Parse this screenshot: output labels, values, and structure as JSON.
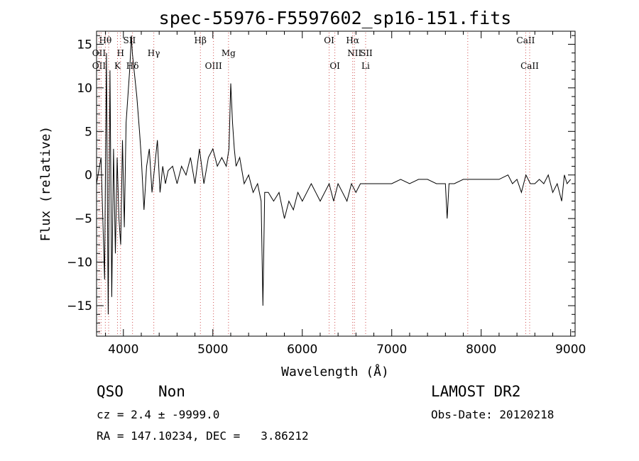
{
  "chart_data": {
    "type": "line",
    "title": "spec-55976-F5597602_sp16-151.fits",
    "xlabel": "Wavelength (Å)",
    "ylabel": "Flux (relative)",
    "xlim": [
      3700,
      9050
    ],
    "ylim": [
      -18.5,
      16.5
    ],
    "xticks": [
      4000,
      5000,
      6000,
      7000,
      8000,
      9000
    ],
    "yticks": [
      -15,
      -10,
      -5,
      0,
      5,
      10,
      15
    ],
    "ytick_labels": [
      "−15",
      "−10",
      "−5",
      "0",
      "5",
      "10",
      "15"
    ],
    "grid": false,
    "series": [
      {
        "x": [
          3700,
          3750,
          3790,
          3810,
          3830,
          3850,
          3870,
          3890,
          3910,
          3930,
          3950,
          3970,
          3990,
          4010,
          4030,
          4050,
          4070,
          4090,
          4100,
          4120,
          4150,
          4180,
          4200,
          4230,
          4260,
          4290,
          4320,
          4350,
          4380,
          4410,
          4440,
          4470,
          4500,
          4550,
          4600,
          4650,
          4700,
          4750,
          4800,
          4850,
          4900,
          4950,
          5000,
          5050,
          5100,
          5150,
          5180,
          5200,
          5220,
          5240,
          5260,
          5300,
          5350,
          5400,
          5450,
          5500,
          5540,
          5560,
          5580,
          5620,
          5680,
          5740,
          5800,
          5850,
          5900,
          5950,
          6000,
          6050,
          6100,
          6150,
          6200,
          6250,
          6300,
          6350,
          6400,
          6450,
          6500,
          6550,
          6600,
          6650,
          6700,
          6800,
          6900,
          7000,
          7100,
          7200,
          7300,
          7400,
          7500,
          7600,
          7620,
          7640,
          7700,
          7800,
          7900,
          8000,
          8100,
          8200,
          8300,
          8350,
          8400,
          8450,
          8500,
          8550,
          8600,
          8650,
          8700,
          8750,
          8800,
          8850,
          8900,
          8930,
          8960,
          9000
        ],
        "y": [
          -1,
          2,
          -12,
          14,
          -16,
          12,
          -14,
          3,
          -9,
          2,
          -5,
          -8,
          4,
          -6,
          6,
          9,
          12,
          16,
          14,
          12,
          9,
          5,
          2,
          -4,
          1,
          3,
          -2,
          1,
          4,
          -2,
          1,
          -1,
          0.5,
          1,
          -1,
          1,
          0,
          2,
          -1,
          3,
          -1,
          2,
          3,
          1,
          2,
          1,
          3,
          10.5,
          6,
          3,
          1,
          2,
          -1,
          0,
          -2,
          -1,
          -3,
          -15,
          -2,
          -2,
          -3,
          -2,
          -5,
          -3,
          -4,
          -2,
          -3,
          -2,
          -1,
          -2,
          -3,
          -2,
          -1,
          -3,
          -1,
          -2,
          -3,
          -1,
          -2,
          -1,
          -1,
          -1,
          -1,
          -1,
          -0.5,
          -1,
          -0.5,
          -0.5,
          -1,
          -1,
          -5,
          -1,
          -1,
          -0.5,
          -0.5,
          -0.5,
          -0.5,
          -0.5,
          0,
          -1,
          -0.5,
          -2,
          0,
          -1,
          -1,
          -0.5,
          -1,
          0,
          -2,
          -1,
          -3,
          0,
          -1,
          -0.5
        ]
      }
    ],
    "spectral_lines": {
      "row1": [
        {
          "name": "Hθ",
          "x": 3798
        },
        {
          "name": "SII",
          "x": 4068
        },
        {
          "name": "Hβ",
          "x": 4861
        },
        {
          "name": "OI",
          "x": 6300
        },
        {
          "name": "Hα",
          "x": 6563
        },
        {
          "name": "CaII",
          "x": 8498
        }
      ],
      "row2": [
        {
          "name": "OII",
          "x": 3727
        },
        {
          "name": "H",
          "x": 3968
        },
        {
          "name": "Hγ",
          "x": 4340
        },
        {
          "name": "Mg",
          "x": 5175
        },
        {
          "name": "NII",
          "x": 6583
        },
        {
          "name": "SII",
          "x": 6716
        }
      ],
      "row3": [
        {
          "name": "OII",
          "x": 3727
        },
        {
          "name": "K",
          "x": 3934
        },
        {
          "name": "Hδ",
          "x": 4102
        },
        {
          "name": "OIII",
          "x": 5007
        },
        {
          "name": "OI",
          "x": 6364
        },
        {
          "name": "Li",
          "x": 6708
        },
        {
          "name": "CaII",
          "x": 8542
        }
      ],
      "dotted_x": [
        3727,
        3750,
        3798,
        3835,
        3934,
        3968,
        4102,
        4340,
        4861,
        5007,
        5175,
        6300,
        6364,
        6563,
        6583,
        6708,
        7850,
        8498,
        8542
      ]
    }
  },
  "info": {
    "object_class": "QSO",
    "subclass": "Non",
    "survey": "LAMOST DR2",
    "redshift_line": "cz = 2.4 ± -9999.0",
    "obs_date": "Obs-Date: 20120218",
    "coords": "RA = 147.10234, DEC =   3.86212"
  }
}
